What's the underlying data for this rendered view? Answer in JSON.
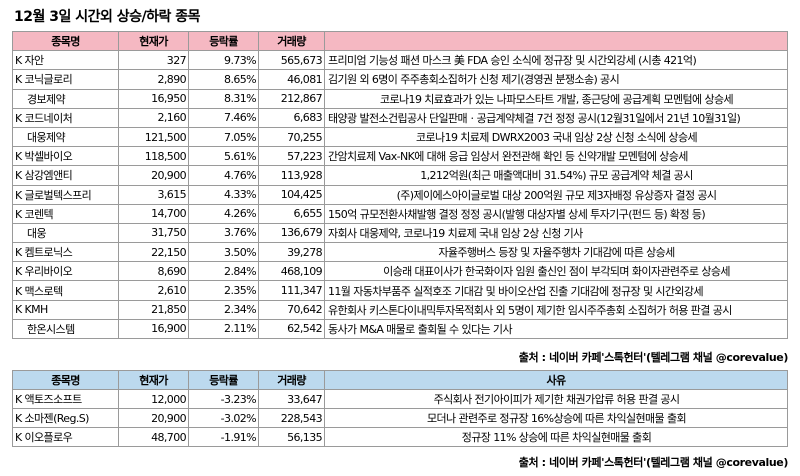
{
  "title": "12월 3일  시간외 상승/하락 종목",
  "rise_table": {
    "headers": [
      "종목명",
      "현재가",
      "등락률",
      "거래량",
      ""
    ],
    "rows": [
      {
        "name": "K 자안",
        "indent": false,
        "price": "327",
        "change": "9.73%",
        "volume": "565,673",
        "reason": "프리미엄 기능성 패션 마스크 美 FDA 승인 소식에 정규장 및 시간외강세 (시총 421억)",
        "center": false
      },
      {
        "name": "K 코닉글로리",
        "indent": false,
        "price": "2,890",
        "change": "8.65%",
        "volume": "46,081",
        "reason": "김기원 외 6명이 주주총회소집허가 신청 제기(경영권 분쟁소송) 공시",
        "center": false
      },
      {
        "name": "경보제약",
        "indent": true,
        "price": "16,950",
        "change": "8.31%",
        "volume": "212,867",
        "reason": "코로나19 치료효과가 있는 나파모스타트 개발, 종근당에 공급계획 모멘텀에 상승세",
        "center": true
      },
      {
        "name": "K 코드네이처",
        "indent": false,
        "price": "2,160",
        "change": "7.46%",
        "volume": "6,683",
        "reason": "태양광 발전소건립공사 단일판매ㆍ공급계약체결 7건 정정 공시(12월31일에서 21년 10월31일)",
        "center": false
      },
      {
        "name": "대웅제약",
        "indent": true,
        "price": "121,500",
        "change": "7.05%",
        "volume": "70,255",
        "reason": "코로나19 치료제 DWRX2003 국내 임상 2상 신청 소식에 상승세",
        "center": true
      },
      {
        "name": "K 박셀바이오",
        "indent": false,
        "price": "118,500",
        "change": "5.61%",
        "volume": "57,223",
        "reason": "간암치료제 Vax-NK에 대해 응급 임상서 완전관해 확인 등 신약개발 모멘텀에 상승세",
        "center": false
      },
      {
        "name": "K 삼강엠앤티",
        "indent": false,
        "price": "20,900",
        "change": "4.76%",
        "volume": "113,928",
        "reason": "1,212억원(최근 매출액대비 31.54%) 규모 공급계약 체결 공시",
        "center": true
      },
      {
        "name": "K 글로벌텍스프리",
        "indent": false,
        "price": "3,615",
        "change": "4.33%",
        "volume": "104,425",
        "reason": "(주)제이에스아이글로벌 대상 200억원 규모 제3자배정 유상증자 결정 공시",
        "center": true
      },
      {
        "name": "K 코렌텍",
        "indent": false,
        "price": "14,700",
        "change": "4.26%",
        "volume": "6,655",
        "reason": "150억 규모전환사채발행 결정 정정 공시(발행 대상자별 상세 투자기구(펀드 등) 확정 등)",
        "center": false
      },
      {
        "name": "대웅",
        "indent": true,
        "price": "31,750",
        "change": "3.76%",
        "volume": "136,679",
        "reason": "자회사 대웅제약, 코로나19 치료제 국내 임상 2상 신청 기사",
        "center": false
      },
      {
        "name": "K 켐트로닉스",
        "indent": false,
        "price": "22,150",
        "change": "3.50%",
        "volume": "39,278",
        "reason": "자율주행버스 등장 및 자율주행차 기대감에 따른 상승세",
        "center": true
      },
      {
        "name": "K 우리바이오",
        "indent": false,
        "price": "8,690",
        "change": "2.84%",
        "volume": "468,109",
        "reason": "이승래 대표이사가 한국화이자 임원 출신인 점이 부각되며 화이자관련주로 상승세",
        "center": true
      },
      {
        "name": "K 맥스로텍",
        "indent": false,
        "price": "2,610",
        "change": "2.35%",
        "volume": "111,347",
        "reason": "11월 자동차부품주 실적호조 기대감 및 바이오산업 진출 기대감에 정규장 및 시간외강세",
        "center": false
      },
      {
        "name": "K KMH",
        "indent": false,
        "price": "21,850",
        "change": "2.34%",
        "volume": "70,642",
        "reason": "유한회사 키스톤다이내믹투자목적회사 외 5명이 제기한 임시주주총회 소집허가 허용 판결 공시",
        "center": false
      },
      {
        "name": "한온시스템",
        "indent": true,
        "price": "16,900",
        "change": "2.11%",
        "volume": "62,542",
        "reason": "동사가 M&A 매물로 출회될 수 있다는 기사",
        "center": false
      }
    ]
  },
  "source_1": "출처 : 네이버 카페'스톡헌터'(텔레그램 채널 @corevalue)",
  "fall_table": {
    "headers": [
      "종목명",
      "현재가",
      "등락률",
      "거래량",
      "사유"
    ],
    "rows": [
      {
        "name": "K 액토즈소프트",
        "price": "12,000",
        "change": "-3.23%",
        "volume": "33,647",
        "reason": "주식회사 전기아이피가 제기한 채권가압류 허용 판결 공시"
      },
      {
        "name": "K 소마젠(Reg.S)",
        "price": "20,900",
        "change": "-3.02%",
        "volume": "228,543",
        "reason": "모더나 관련주로 정규장 16%상승에 따른 차익실현매물 출회"
      },
      {
        "name": "K 이오플로우",
        "price": "48,700",
        "change": "-1.91%",
        "volume": "56,135",
        "reason": "정규장 11% 상승에 따른 차익실현매물 출회"
      }
    ]
  },
  "source_2": "출처 : 네이버 카페'스톡헌터'(텔레그램 채널 @corevalue)"
}
